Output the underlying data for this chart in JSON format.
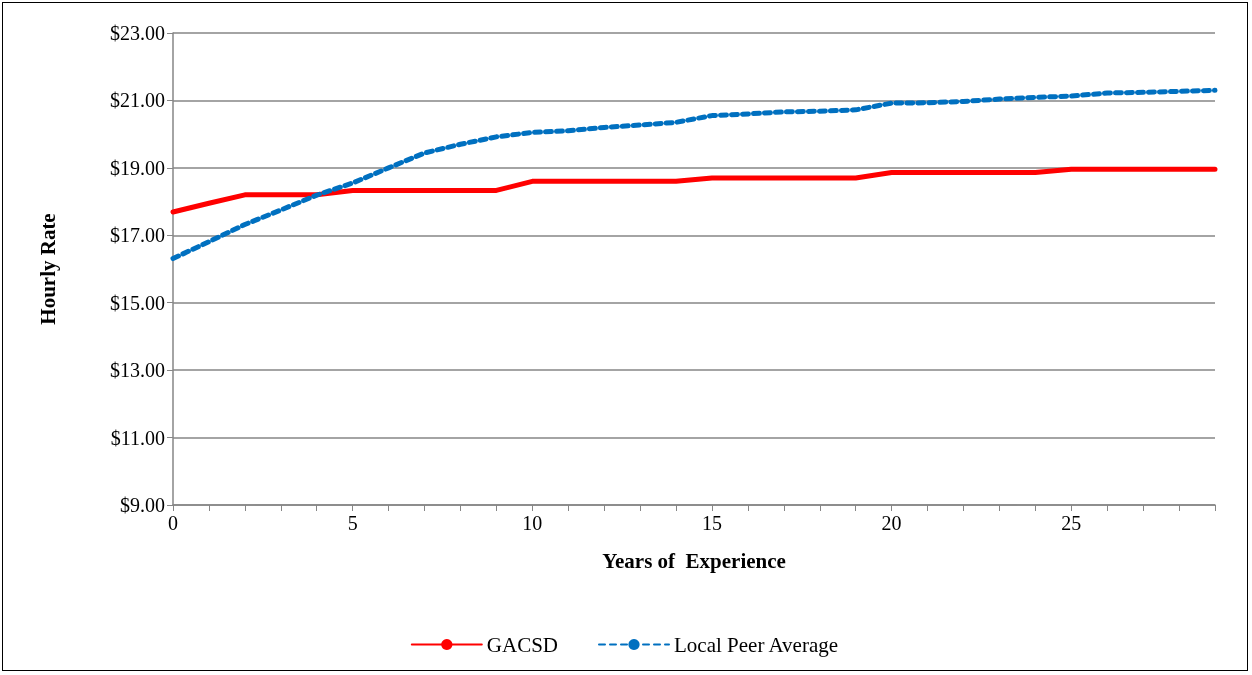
{
  "chart_data": {
    "type": "line",
    "xlabel": "Years of  Experience",
    "ylabel": "Hourly Rate",
    "x": [
      0,
      1,
      2,
      3,
      4,
      5,
      6,
      7,
      8,
      9,
      10,
      11,
      12,
      13,
      14,
      15,
      16,
      17,
      18,
      19,
      20,
      21,
      22,
      23,
      24,
      25,
      26,
      27,
      28,
      29
    ],
    "series": [
      {
        "name": "GACSD",
        "color": "#ff0000",
        "line_style": "solid",
        "values": [
          17.69,
          17.95,
          18.2,
          18.2,
          18.2,
          18.33,
          18.33,
          18.33,
          18.33,
          18.33,
          18.6,
          18.6,
          18.6,
          18.6,
          18.6,
          18.7,
          18.7,
          18.7,
          18.7,
          18.7,
          18.86,
          18.86,
          18.86,
          18.86,
          18.86,
          18.96,
          18.96,
          18.96,
          18.96,
          18.96
        ]
      },
      {
        "name": "Local Peer Average",
        "color": "#0070c0",
        "line_style": "dashed",
        "values": [
          16.31,
          16.81,
          17.32,
          17.75,
          18.19,
          18.55,
          19.0,
          19.44,
          19.7,
          19.92,
          20.05,
          20.1,
          20.2,
          20.27,
          20.35,
          20.55,
          20.6,
          20.66,
          20.68,
          20.72,
          20.92,
          20.93,
          20.97,
          21.04,
          21.09,
          21.13,
          21.22,
          21.24,
          21.27,
          21.3
        ]
      }
    ],
    "xlim": [
      0,
      29
    ],
    "xticks": [
      0,
      {
        "value": 1,
        "label": null
      },
      {
        "value": 2,
        "label": null
      },
      {
        "value": 3,
        "label": null
      },
      {
        "value": 4,
        "label": null
      },
      5,
      {
        "value": 6,
        "label": null
      },
      {
        "value": 7,
        "label": null
      },
      {
        "value": 8,
        "label": null
      },
      {
        "value": 9,
        "label": null
      },
      10,
      {
        "value": 11,
        "label": null
      },
      {
        "value": 12,
        "label": null
      },
      {
        "value": 13,
        "label": null
      },
      {
        "value": 14,
        "label": null
      },
      15,
      {
        "value": 16,
        "label": null
      },
      {
        "value": 17,
        "label": null
      },
      {
        "value": 18,
        "label": null
      },
      {
        "value": 19,
        "label": null
      },
      20,
      {
        "value": 21,
        "label": null
      },
      {
        "value": 22,
        "label": null
      },
      {
        "value": 23,
        "label": null
      },
      {
        "value": 24,
        "label": null
      },
      25,
      {
        "value": 26,
        "label": null
      },
      {
        "value": 27,
        "label": null
      },
      {
        "value": 28,
        "label": null
      },
      {
        "value": 29,
        "label": null
      }
    ],
    "ylim": [
      9,
      23
    ],
    "yticks": [
      {
        "value": 9,
        "label": "$9.00"
      },
      {
        "value": 11,
        "label": "$11.00"
      },
      {
        "value": 13,
        "label": "$13.00"
      },
      {
        "value": 15,
        "label": "$15.00"
      },
      {
        "value": 17,
        "label": "$17.00"
      },
      {
        "value": 19,
        "label": "$19.00"
      },
      {
        "value": 21,
        "label": "$21.00"
      },
      {
        "value": 23,
        "label": "$23.00"
      }
    ],
    "grid": "y",
    "legend": "bottom",
    "marker": "none"
  }
}
